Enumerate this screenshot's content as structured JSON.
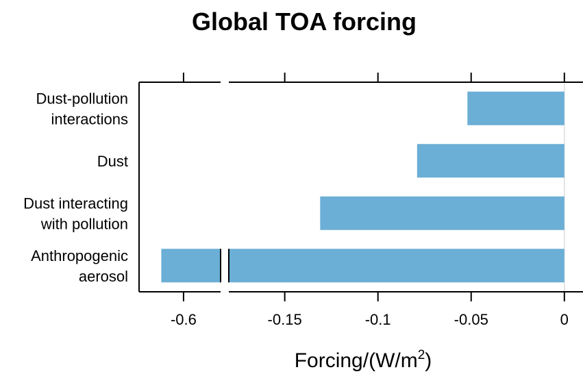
{
  "chart_data": {
    "type": "bar",
    "orientation": "horizontal",
    "title": "Global TOA forcing",
    "xlabel": {
      "main": "Forcing",
      "unit_open": "(W",
      "unit_mid": "/m",
      "sup": "2",
      "unit_close": ")"
    },
    "categories": [
      [
        "Dust-pollution",
        "interactions"
      ],
      [
        "Dust"
      ],
      [
        "Dust interacting",
        "with pollution"
      ],
      [
        "Anthropogenic",
        "aerosol"
      ]
    ],
    "values": [
      -0.052,
      -0.079,
      -0.131,
      -0.615
    ],
    "bar_color": "#6baed6",
    "axis_break": {
      "left_segment": [
        -0.63,
        -0.575
      ],
      "right_segment": [
        -0.18,
        0.01
      ]
    },
    "ticks_left": [
      {
        "value": -0.6,
        "label": "-0.6"
      }
    ],
    "ticks_right": [
      {
        "value": -0.15,
        "label": "-0.15"
      },
      {
        "value": -0.1,
        "label": "-0.1"
      },
      {
        "value": -0.05,
        "label": "-0.05"
      },
      {
        "value": 0,
        "label": "0"
      }
    ]
  }
}
